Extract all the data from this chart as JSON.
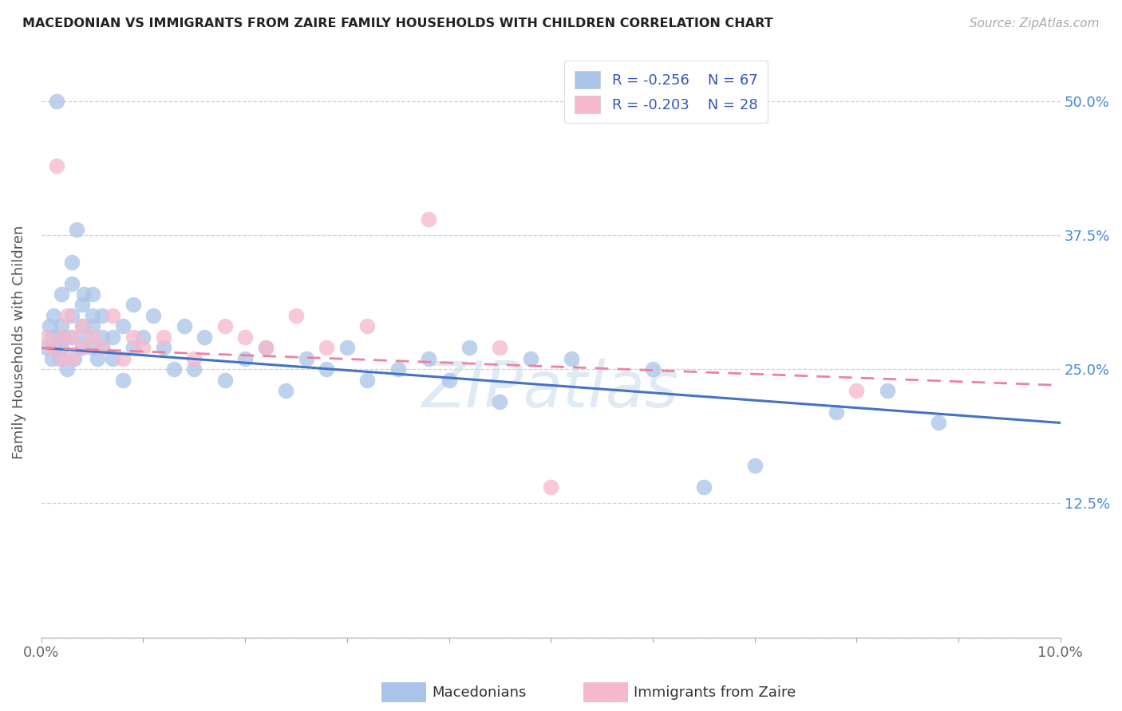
{
  "title": "MACEDONIAN VS IMMIGRANTS FROM ZAIRE FAMILY HOUSEHOLDS WITH CHILDREN CORRELATION CHART",
  "source": "Source: ZipAtlas.com",
  "ylabel": "Family Households with Children",
  "xlim": [
    0.0,
    0.1
  ],
  "ylim": [
    0.0,
    0.55
  ],
  "yticks": [
    0.0,
    0.125,
    0.25,
    0.375,
    0.5
  ],
  "ytick_labels_right": [
    "",
    "12.5%",
    "25.0%",
    "37.5%",
    "50.0%"
  ],
  "xtick_vals": [
    0.0,
    0.01,
    0.02,
    0.03,
    0.04,
    0.05,
    0.06,
    0.07,
    0.08,
    0.09,
    0.1
  ],
  "xtick_labels": [
    "0.0%",
    "",
    "",
    "",
    "",
    "",
    "",
    "",
    "",
    "",
    "10.0%"
  ],
  "grid_color": "#d0d0d0",
  "background_color": "#ffffff",
  "macedonian_color": "#aac4e8",
  "zaire_color": "#f5b8cc",
  "macedonian_line_color": "#4472c4",
  "zaire_line_color": "#f080a0",
  "watermark": "ZIPatlas",
  "legend_R_macedonian": "R = -0.256",
  "legend_N_macedonian": "N = 67",
  "legend_R_zaire": "R = -0.203",
  "legend_N_zaire": "N = 28",
  "mac_x": [
    0.0005,
    0.0008,
    0.001,
    0.001,
    0.0012,
    0.0013,
    0.0015,
    0.0015,
    0.0018,
    0.002,
    0.002,
    0.002,
    0.0022,
    0.0025,
    0.003,
    0.003,
    0.003,
    0.003,
    0.0032,
    0.0035,
    0.004,
    0.004,
    0.004,
    0.0042,
    0.0045,
    0.005,
    0.005,
    0.005,
    0.005,
    0.0055,
    0.006,
    0.006,
    0.006,
    0.007,
    0.007,
    0.008,
    0.008,
    0.009,
    0.009,
    0.01,
    0.011,
    0.012,
    0.013,
    0.014,
    0.015,
    0.016,
    0.018,
    0.02,
    0.022,
    0.024,
    0.026,
    0.028,
    0.03,
    0.032,
    0.035,
    0.038,
    0.04,
    0.042,
    0.045,
    0.048,
    0.052,
    0.06,
    0.065,
    0.07,
    0.078,
    0.083,
    0.088
  ],
  "mac_y": [
    0.27,
    0.29,
    0.26,
    0.28,
    0.3,
    0.27,
    0.5,
    0.28,
    0.26,
    0.29,
    0.32,
    0.27,
    0.28,
    0.25,
    0.33,
    0.35,
    0.3,
    0.28,
    0.26,
    0.38,
    0.31,
    0.29,
    0.27,
    0.32,
    0.28,
    0.3,
    0.32,
    0.27,
    0.29,
    0.26,
    0.28,
    0.3,
    0.27,
    0.26,
    0.28,
    0.24,
    0.29,
    0.31,
    0.27,
    0.28,
    0.3,
    0.27,
    0.25,
    0.29,
    0.25,
    0.28,
    0.24,
    0.26,
    0.27,
    0.23,
    0.26,
    0.25,
    0.27,
    0.24,
    0.25,
    0.26,
    0.24,
    0.27,
    0.22,
    0.26,
    0.26,
    0.25,
    0.14,
    0.16,
    0.21,
    0.23,
    0.2
  ],
  "zaire_x": [
    0.0005,
    0.001,
    0.0015,
    0.002,
    0.002,
    0.0025,
    0.003,
    0.003,
    0.004,
    0.004,
    0.005,
    0.006,
    0.007,
    0.008,
    0.009,
    0.01,
    0.012,
    0.015,
    0.018,
    0.02,
    0.022,
    0.025,
    0.028,
    0.032,
    0.038,
    0.045,
    0.05,
    0.08
  ],
  "zaire_y": [
    0.28,
    0.27,
    0.44,
    0.26,
    0.28,
    0.3,
    0.26,
    0.28,
    0.27,
    0.29,
    0.28,
    0.27,
    0.3,
    0.26,
    0.28,
    0.27,
    0.28,
    0.26,
    0.29,
    0.28,
    0.27,
    0.3,
    0.27,
    0.29,
    0.39,
    0.27,
    0.14,
    0.23
  ]
}
